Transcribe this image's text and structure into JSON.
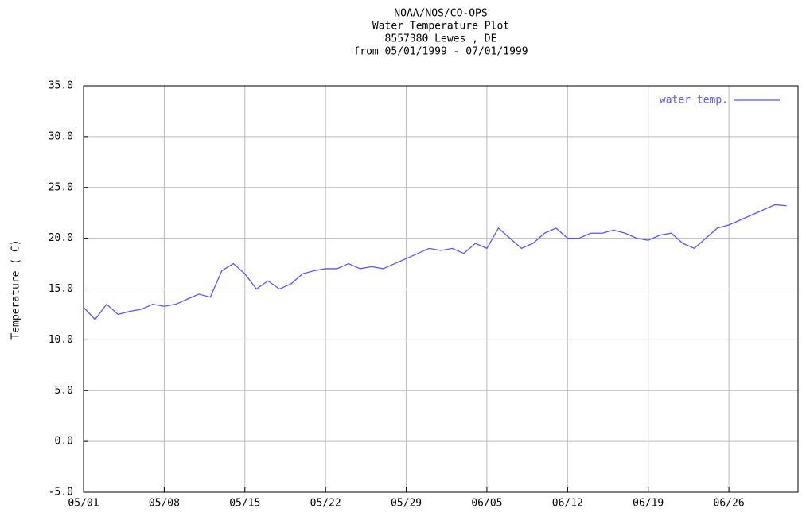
{
  "chart_data": {
    "type": "line",
    "title": [
      "NOAA/NOS/CO-OPS",
      "Water Temperature Plot",
      "8557380 Lewes , DE",
      "from 05/01/1999 - 07/01/1999"
    ],
    "ylabel": "Temperature ( C)",
    "x": [
      "1999-05-01",
      "1999-05-02",
      "1999-05-03",
      "1999-05-04",
      "1999-05-05",
      "1999-05-06",
      "1999-05-07",
      "1999-05-08",
      "1999-05-09",
      "1999-05-10",
      "1999-05-11",
      "1999-05-12",
      "1999-05-13",
      "1999-05-14",
      "1999-05-15",
      "1999-05-16",
      "1999-05-17",
      "1999-05-18",
      "1999-05-19",
      "1999-05-20",
      "1999-05-21",
      "1999-05-22",
      "1999-05-23",
      "1999-05-24",
      "1999-05-25",
      "1999-05-26",
      "1999-05-27",
      "1999-05-28",
      "1999-05-29",
      "1999-05-30",
      "1999-05-31",
      "1999-06-01",
      "1999-06-02",
      "1999-06-03",
      "1999-06-04",
      "1999-06-05",
      "1999-06-06",
      "1999-06-07",
      "1999-06-08",
      "1999-06-09",
      "1999-06-10",
      "1999-06-11",
      "1999-06-12",
      "1999-06-13",
      "1999-06-14",
      "1999-06-15",
      "1999-06-16",
      "1999-06-17",
      "1999-06-18",
      "1999-06-19",
      "1999-06-20",
      "1999-06-21",
      "1999-06-22",
      "1999-06-23",
      "1999-06-24",
      "1999-06-25",
      "1999-06-26",
      "1999-06-27",
      "1999-06-28",
      "1999-06-29",
      "1999-06-30",
      "1999-07-01"
    ],
    "series": [
      {
        "name": "water temp.",
        "color": "#5656ff",
        "values": [
          13.2,
          12.0,
          13.5,
          12.5,
          12.8,
          13.0,
          13.5,
          13.3,
          13.5,
          14.0,
          14.5,
          14.2,
          16.8,
          17.5,
          16.5,
          15.0,
          15.8,
          15.0,
          15.5,
          16.5,
          16.8,
          17.0,
          17.0,
          17.5,
          17.0,
          17.2,
          17.0,
          17.5,
          18.0,
          18.5,
          19.0,
          18.8,
          19.0,
          18.5,
          19.5,
          19.0,
          21.0,
          20.0,
          19.0,
          19.5,
          20.5,
          21.0,
          20.0,
          20.0,
          20.5,
          20.5,
          20.8,
          20.5,
          20.0,
          19.8,
          20.3,
          20.5,
          19.5,
          19.0,
          20.0,
          21.0,
          21.3,
          21.8,
          22.3,
          22.8,
          23.3,
          23.2
        ]
      }
    ],
    "xlim": [
      "1999-05-01",
      "1999-07-02"
    ],
    "xticks": [
      {
        "value": "1999-05-01",
        "label": "05/01"
      },
      {
        "value": "1999-05-08",
        "label": "05/08"
      },
      {
        "value": "1999-05-15",
        "label": "05/15"
      },
      {
        "value": "1999-05-22",
        "label": "05/22"
      },
      {
        "value": "1999-05-29",
        "label": "05/29"
      },
      {
        "value": "1999-06-05",
        "label": "06/05"
      },
      {
        "value": "1999-06-12",
        "label": "06/12"
      },
      {
        "value": "1999-06-19",
        "label": "06/19"
      },
      {
        "value": "1999-06-26",
        "label": "06/26"
      }
    ],
    "ylim": [
      -5,
      35
    ],
    "yticks": [
      {
        "value": -5,
        "label": "-5.0"
      },
      {
        "value": 0,
        "label": "0.0"
      },
      {
        "value": 5,
        "label": "5.0"
      },
      {
        "value": 10,
        "label": "10.0"
      },
      {
        "value": 15,
        "label": "15.0"
      },
      {
        "value": 20,
        "label": "20.0"
      },
      {
        "value": 25,
        "label": "25.0"
      },
      {
        "value": 30,
        "label": "30.0"
      },
      {
        "value": 35,
        "label": "35.0"
      }
    ],
    "grid": true,
    "legend": "upper right"
  }
}
